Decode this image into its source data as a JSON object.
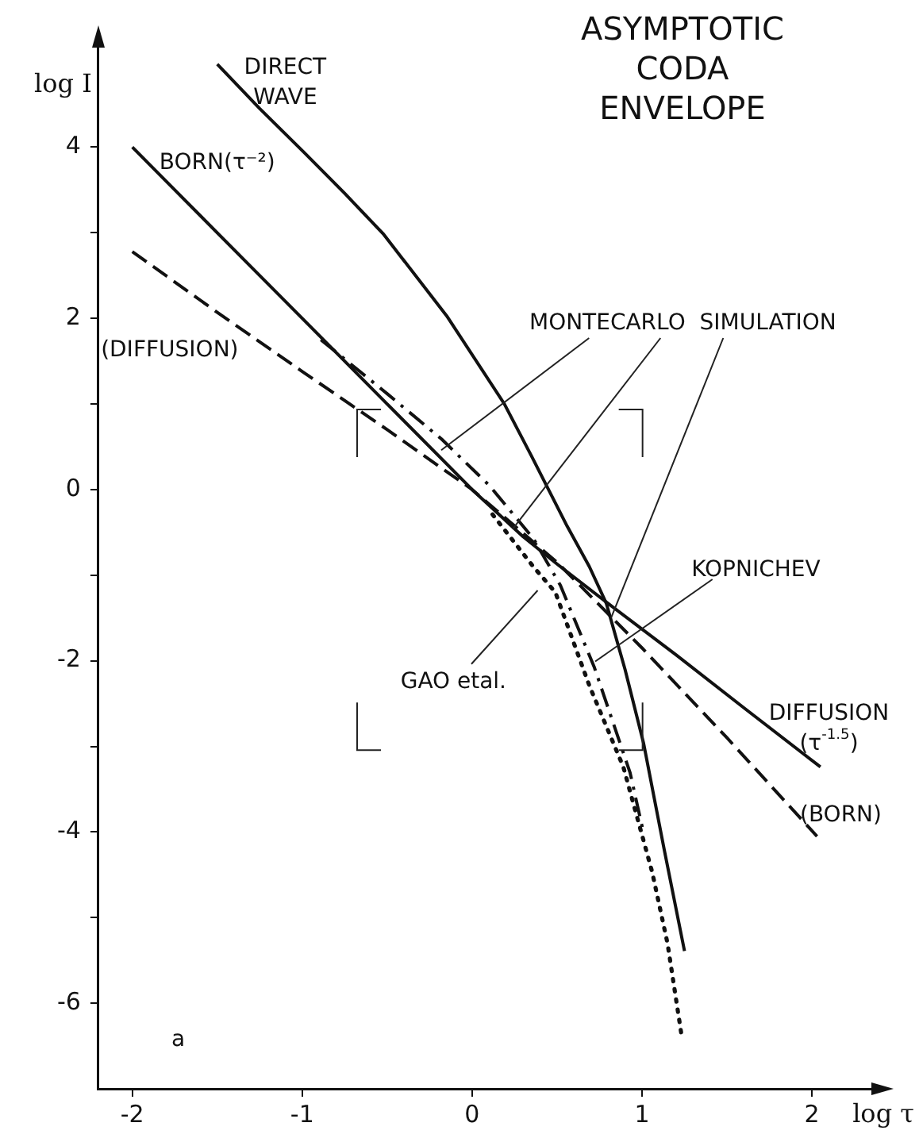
{
  "chart_data": {
    "type": "line",
    "title": "ASYMPTOTIC\nCODA\nENVELOPE",
    "xlabel": "log τ",
    "ylabel": "log I",
    "xlim": [
      -2.2,
      2.35
    ],
    "ylim": [
      -7,
      5.2
    ],
    "xticks": [
      -2,
      -1,
      0,
      1,
      2
    ],
    "yticks": [
      4,
      {
        "value": 3,
        "label": null
      },
      2,
      {
        "value": 1,
        "label": null
      },
      0,
      {
        "value": -1,
        "label": null
      },
      -2,
      {
        "value": -3,
        "label": null
      },
      -4,
      {
        "value": -5,
        "label": null
      },
      -6
    ],
    "grid": false,
    "legend": false,
    "marker": "none",
    "series": [
      {
        "color": "#111111",
        "line_style": "solid",
        "x": [
          -2,
          -1.5,
          -1,
          -0.5,
          0,
          0.3,
          0.5,
          0.8,
          1.2,
          1.6,
          2.05
        ],
        "values": [
          4,
          3,
          2,
          1,
          0,
          -0.55,
          -0.87,
          -1.33,
          -1.93,
          -2.55,
          -3.24
        ]
      },
      {
        "color": "#111111",
        "line_style": "dashed",
        "x": [
          -2,
          -1.5,
          -1,
          -0.5,
          0,
          0.5,
          1,
          1.5,
          2.03
        ],
        "values": [
          2.78,
          2.07,
          1.38,
          0.7,
          0,
          -0.85,
          -1.85,
          -2.9,
          -4.05
        ]
      },
      {
        "color": "#111111",
        "line_style": "solid",
        "x": [
          -1.5,
          -1.25,
          -0.99,
          -0.75,
          -0.52,
          -0.15,
          0.19,
          0.35,
          0.56,
          0.69,
          0.79,
          0.9,
          1.01,
          1.13,
          1.25
        ],
        "values": [
          4.97,
          4.45,
          3.94,
          3.46,
          2.98,
          2.03,
          1.0,
          0.39,
          -0.43,
          -0.9,
          -1.33,
          -2.1,
          -2.97,
          -4.2,
          -5.39
        ]
      },
      {
        "color": "#111111",
        "line_style": "dotted",
        "x": [
          0.12,
          0.36,
          0.49,
          0.69,
          0.89,
          1.06,
          1.15,
          1.23
        ],
        "values": [
          -0.29,
          -0.9,
          -1.2,
          -2.29,
          -3.24,
          -4.47,
          -5.3,
          -6.34
        ]
      },
      {
        "color": "#111111",
        "line_style": "dashdot",
        "x": [
          -0.89,
          -0.5,
          -0.18,
          0.1,
          0.36,
          0.52,
          0.72,
          0.93,
          1.01
        ],
        "values": [
          1.75,
          1.12,
          0.59,
          0.05,
          -0.57,
          -1.12,
          -2.08,
          -3.31,
          -4.02
        ]
      }
    ],
    "annotations": [
      "DIRECT\nWAVE",
      "BORN(τ⁻²)",
      "(DIFFUSION)",
      {
        "text": "MONTECARLO  SIMULATION",
        "x": -0.18,
        "y": 0.46
      },
      {
        "text": "KOPNICHEV",
        "x": 0.72,
        "y": -2.01
      },
      "GAO etal.",
      "DIFFUSION\n(τ$^{-1.5}$)",
      "(BORN)",
      "a"
    ]
  }
}
